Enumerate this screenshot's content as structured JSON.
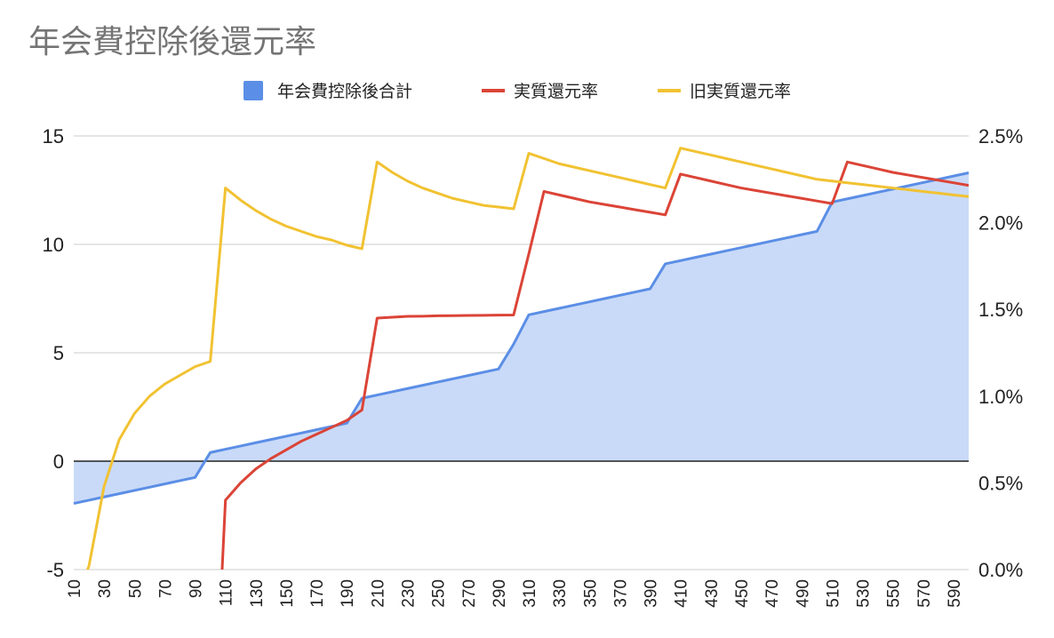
{
  "chart_data": {
    "type": "line",
    "title": "年会費控除後還元率",
    "x": [
      10,
      20,
      30,
      40,
      50,
      60,
      70,
      80,
      90,
      100,
      110,
      120,
      130,
      140,
      150,
      160,
      170,
      180,
      190,
      200,
      210,
      220,
      230,
      240,
      250,
      260,
      270,
      280,
      290,
      300,
      310,
      320,
      330,
      340,
      350,
      360,
      370,
      380,
      390,
      400,
      410,
      420,
      430,
      440,
      450,
      460,
      470,
      480,
      490,
      500,
      510,
      520,
      530,
      540,
      550,
      560,
      570,
      580,
      590,
      600
    ],
    "x_tick_labels": [
      "10",
      "30",
      "50",
      "70",
      "90",
      "110",
      "130",
      "150",
      "170",
      "190",
      "210",
      "230",
      "250",
      "270",
      "290",
      "310",
      "330",
      "350",
      "370",
      "390",
      "410",
      "430",
      "450",
      "470",
      "490",
      "510",
      "530",
      "550",
      "570",
      "590"
    ],
    "left_axis": {
      "ylim": [
        -5,
        15
      ],
      "ticks": [
        "-5",
        "0",
        "5",
        "10",
        "15"
      ]
    },
    "right_axis": {
      "ylim": [
        0.0,
        2.5
      ],
      "ticks": [
        "0.0%",
        "0.5%",
        "1.0%",
        "1.5%",
        "2.0%",
        "2.5%"
      ]
    },
    "legend_position": "top",
    "grid": true,
    "series": [
      {
        "name": "年会費控除後合計",
        "type": "area",
        "axis": "left",
        "color": "#5b8ee6",
        "fill": "#c9daf8",
        "values": [
          -1.95,
          -1.8,
          -1.65,
          -1.5,
          -1.35,
          -1.2,
          -1.05,
          -0.9,
          -0.75,
          0.4,
          0.55,
          0.7,
          0.85,
          1.0,
          1.15,
          1.3,
          1.45,
          1.6,
          1.75,
          2.9,
          3.05,
          3.2,
          3.35,
          3.5,
          3.65,
          3.8,
          3.95,
          4.1,
          4.25,
          5.4,
          6.75,
          6.9,
          7.05,
          7.2,
          7.35,
          7.5,
          7.65,
          7.8,
          7.95,
          9.1,
          9.25,
          9.4,
          9.55,
          9.7,
          9.85,
          10.0,
          10.15,
          10.3,
          10.45,
          10.6,
          11.95,
          12.1,
          12.25,
          12.4,
          12.55,
          12.7,
          12.85,
          13.0,
          13.15,
          13.3
        ]
      },
      {
        "name": "実質還元率",
        "type": "line",
        "axis": "right",
        "color": "#db4437",
        "values": [
          null,
          null,
          null,
          null,
          null,
          null,
          null,
          null,
          null,
          null,
          0.4,
          0.5,
          0.58,
          0.64,
          0.69,
          0.74,
          0.78,
          0.82,
          0.86,
          0.92,
          1.45,
          1.455,
          1.46,
          1.461,
          1.463,
          1.464,
          1.465,
          1.466,
          1.467,
          1.468,
          1.82,
          2.18,
          2.16,
          2.14,
          2.12,
          2.105,
          2.09,
          2.075,
          2.06,
          2.045,
          2.28,
          2.26,
          2.24,
          2.22,
          2.2,
          2.185,
          2.17,
          2.155,
          2.14,
          2.125,
          2.11,
          2.35,
          2.33,
          2.31,
          2.29,
          2.275,
          2.26,
          2.245,
          2.23,
          2.215
        ]
      },
      {
        "name": "旧実質還元率",
        "type": "line",
        "axis": "right",
        "color": "#f1c232",
        "values": [
          null,
          0.02,
          0.48,
          0.75,
          0.9,
          1.0,
          1.07,
          1.12,
          1.17,
          1.2,
          2.2,
          2.13,
          2.07,
          2.02,
          1.98,
          1.95,
          1.92,
          1.9,
          1.87,
          1.85,
          2.35,
          2.29,
          2.24,
          2.2,
          2.17,
          2.14,
          2.12,
          2.1,
          2.09,
          2.08,
          2.4,
          2.37,
          2.34,
          2.32,
          2.3,
          2.28,
          2.26,
          2.24,
          2.22,
          2.2,
          2.43,
          2.41,
          2.39,
          2.37,
          2.35,
          2.33,
          2.31,
          2.29,
          2.27,
          2.25,
          2.24,
          2.23,
          2.22,
          2.21,
          2.2,
          2.19,
          2.18,
          2.17,
          2.16,
          2.15
        ]
      }
    ]
  }
}
